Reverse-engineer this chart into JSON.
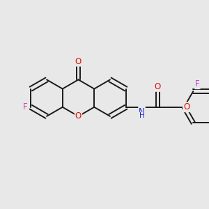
{
  "bg_color": "#e8e8e8",
  "bond_color": "#1a1a1a",
  "bond_width": 1.4,
  "atom_colors": {
    "O": "#dd1100",
    "N": "#2222cc",
    "F": "#cc44bb"
  },
  "font_size": 8.5,
  "fig_width": 3.0,
  "fig_height": 3.0,
  "xlim": [
    -1.55,
    1.65
  ],
  "ylim": [
    -1.1,
    1.1
  ]
}
